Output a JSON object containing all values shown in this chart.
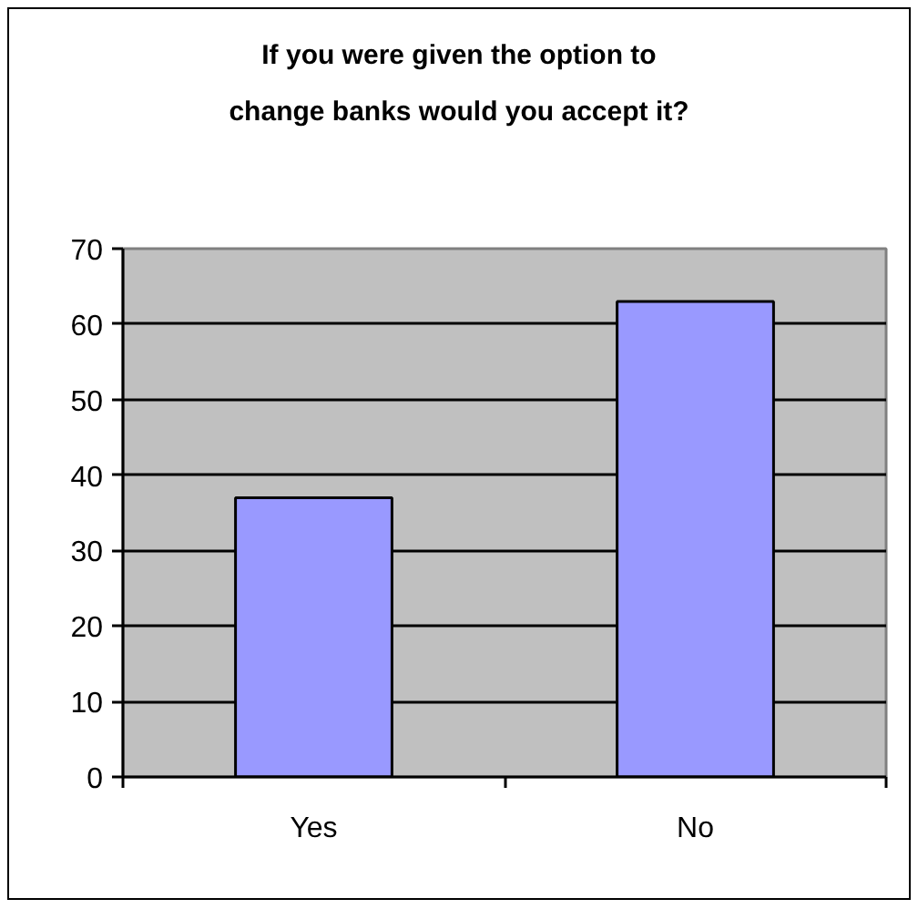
{
  "chart_data": {
    "type": "bar",
    "title": "If you were given the option to\nchange banks would you accept it?",
    "categories": [
      "Yes",
      "No"
    ],
    "values": [
      37,
      63
    ],
    "color": "#9999ff",
    "ylim": [
      0,
      70
    ],
    "yticks": [
      0,
      10,
      20,
      30,
      40,
      50,
      60,
      70
    ],
    "grid": "y"
  }
}
